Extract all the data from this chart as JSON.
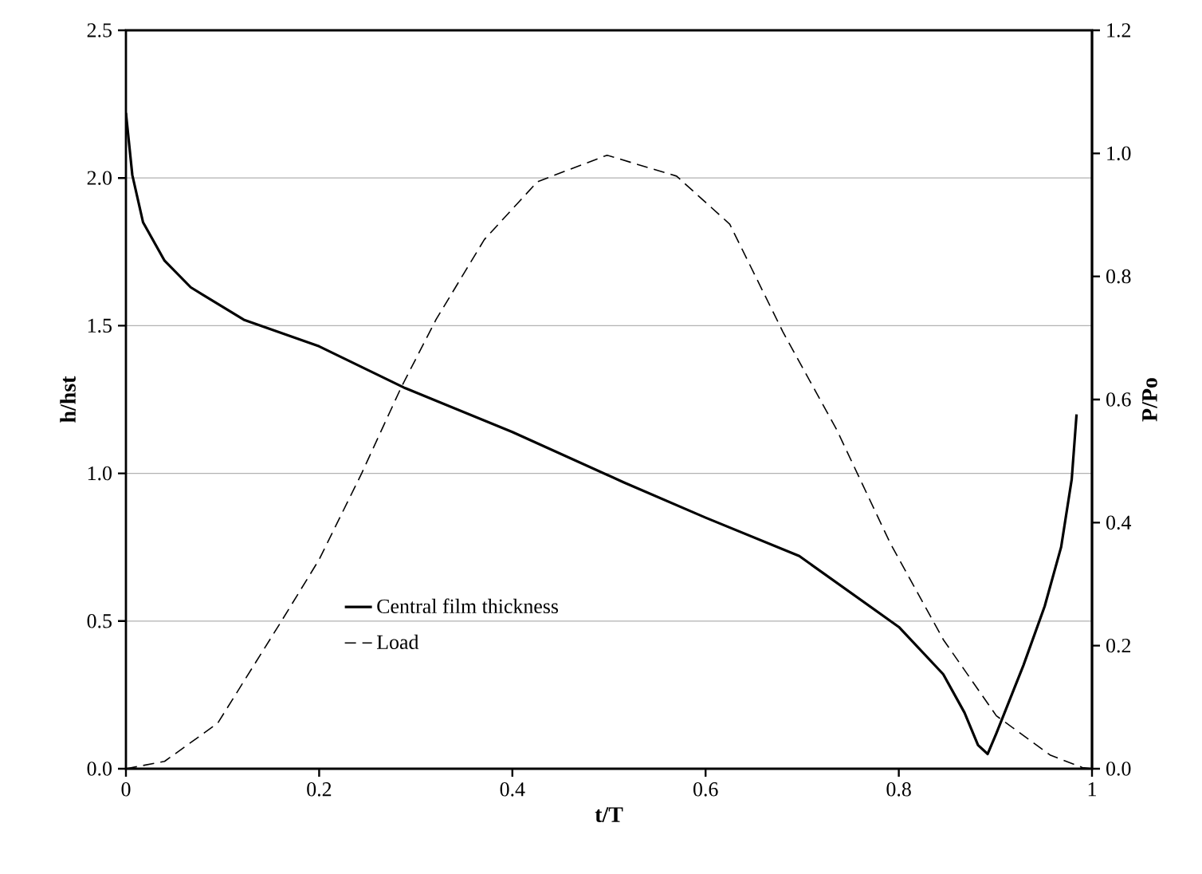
{
  "chart_data": {
    "type": "line",
    "xlabel": "t/T",
    "ylabel": "h/hst",
    "y2label": "P/Po",
    "xlim": [
      0,
      1
    ],
    "xticks": [
      0,
      0.2,
      0.4,
      0.6,
      0.8,
      1
    ],
    "ylim": [
      0,
      2.5
    ],
    "yticks": [
      {
        "value": 0,
        "label": "0.0"
      },
      {
        "value": 0.5,
        "label": "0.5"
      },
      {
        "value": 1,
        "label": "1.0"
      },
      {
        "value": 1.5,
        "label": "1.5"
      },
      {
        "value": 2,
        "label": "2.0"
      },
      {
        "value": 2.5,
        "label": "2.5"
      }
    ],
    "y2lim": [
      0,
      1.2
    ],
    "y2ticks": [
      {
        "value": 0,
        "label": "0.0"
      },
      {
        "value": 0.2,
        "label": "0.2"
      },
      {
        "value": 0.4,
        "label": "0.4"
      },
      {
        "value": 0.6,
        "label": "0.6"
      },
      {
        "value": 0.8,
        "label": "0.8"
      },
      {
        "value": 1,
        "label": "1.0"
      },
      {
        "value": 1.2,
        "label": "1.2"
      }
    ],
    "grid": "y",
    "legend": "bottom center",
    "series": [
      {
        "name": "Central film thickness",
        "color": "#000000",
        "line_style": "solid",
        "x": [
          0,
          0.0066,
          0.0177,
          0.04,
          0.067,
          0.122,
          0.2,
          0.288,
          0.4,
          0.515,
          0.6,
          0.697,
          0.8,
          0.846,
          0.868,
          0.882,
          0.892,
          0.901,
          0.929,
          0.951,
          0.968,
          0.979,
          0.984
        ],
        "values": [
          2.22,
          2.01,
          1.85,
          1.72,
          1.63,
          1.52,
          1.43,
          1.29,
          1.14,
          0.97,
          0.85,
          0.72,
          0.48,
          0.32,
          0.19,
          0.08,
          0.05,
          0.12,
          0.35,
          0.55,
          0.75,
          0.98,
          1.2
        ]
      },
      {
        "name": "Load",
        "color": "#000000",
        "line_style": "dashed",
        "axis": "y2",
        "x": [
          0,
          0.04,
          0.095,
          0.161,
          0.2,
          0.244,
          0.285,
          0.321,
          0.371,
          0.426,
          0.498,
          0.57,
          0.625,
          0.68,
          0.736,
          0.791,
          0.846,
          0.901,
          0.957,
          0.99,
          1
        ],
        "values": [
          0,
          0.012,
          0.074,
          0.24,
          0.34,
          0.48,
          0.62,
          0.73,
          0.86,
          0.954,
          0.997,
          0.963,
          0.885,
          0.71,
          0.55,
          0.367,
          0.21,
          0.086,
          0.022,
          0.002,
          0
        ]
      }
    ]
  }
}
